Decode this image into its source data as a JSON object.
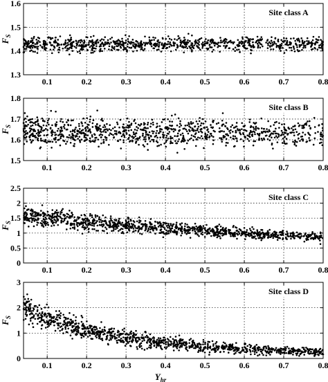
{
  "chart_data": [
    {
      "type": "scatter",
      "panel_title": "Site class A",
      "ylabel_main": "F",
      "ylabel_sub": "S",
      "xlim": [
        0.04,
        0.8
      ],
      "ylim": [
        1.3,
        1.6
      ],
      "yticks": [
        1.3,
        1.4,
        1.5,
        1.6
      ],
      "ytick_labels": [
        "1.3",
        "1.4",
        "1.5",
        "1.6"
      ],
      "xticks": [
        0.1,
        0.2,
        0.3,
        0.4,
        0.5,
        0.6,
        0.7,
        0.8
      ],
      "xtick_labels": [
        "0.1",
        "0.2",
        "0.3",
        "0.4",
        "0.5",
        "0.6",
        "0.7",
        "0.8"
      ],
      "grid": true,
      "trend": [
        [
          0.04,
          1.428
        ],
        [
          0.8,
          1.428
        ]
      ],
      "spread": [
        [
          0.04,
          0.023
        ],
        [
          0.8,
          0.018
        ]
      ],
      "point_count": 900,
      "seed": 11
    },
    {
      "type": "scatter",
      "panel_title": "Site class B",
      "ylabel_main": "F",
      "ylabel_sub": "S",
      "xlim": [
        0.04,
        0.8
      ],
      "ylim": [
        1.5,
        1.8
      ],
      "yticks": [
        1.5,
        1.6,
        1.7,
        1.8
      ],
      "ytick_labels": [
        "1.5",
        "1.6",
        "1.7",
        "1.8"
      ],
      "xticks": [
        0.1,
        0.2,
        0.3,
        0.4,
        0.5,
        0.6,
        0.7,
        0.8
      ],
      "xtick_labels": [
        "0.1",
        "0.2",
        "0.3",
        "0.4",
        "0.5",
        "0.6",
        "0.7",
        "0.8"
      ],
      "grid": true,
      "trend": [
        [
          0.04,
          1.64
        ],
        [
          0.8,
          1.632
        ]
      ],
      "spread": [
        [
          0.04,
          0.05
        ],
        [
          0.8,
          0.04
        ]
      ],
      "point_count": 1000,
      "seed": 23
    },
    {
      "type": "scatter",
      "panel_title": "Site class C",
      "ylabel_main": "F",
      "ylabel_sub": "S",
      "xlim": [
        0.04,
        0.8
      ],
      "ylim": [
        0,
        2.5
      ],
      "yticks": [
        0,
        0.5,
        1,
        1.5,
        2,
        2.5
      ],
      "ytick_labels": [
        "0",
        "0.5",
        "1",
        "1.5",
        "2",
        "2.5"
      ],
      "xticks": [
        0.1,
        0.2,
        0.3,
        0.4,
        0.5,
        0.6,
        0.7,
        0.8
      ],
      "xtick_labels": [
        "0.1",
        "0.2",
        "0.3",
        "0.4",
        "0.5",
        "0.6",
        "0.7",
        "0.8"
      ],
      "grid": true,
      "trend": [
        [
          0.04,
          1.6
        ],
        [
          0.1,
          1.5
        ],
        [
          0.2,
          1.38
        ],
        [
          0.3,
          1.26
        ],
        [
          0.4,
          1.16
        ],
        [
          0.5,
          1.08
        ],
        [
          0.6,
          1.0
        ],
        [
          0.7,
          0.93
        ],
        [
          0.8,
          0.86
        ]
      ],
      "spread": [
        [
          0.04,
          0.22
        ],
        [
          0.2,
          0.18
        ],
        [
          0.5,
          0.13
        ],
        [
          0.8,
          0.1
        ]
      ],
      "point_count": 1100,
      "seed": 37
    },
    {
      "type": "scatter",
      "panel_title": "Site class D",
      "ylabel_main": "F",
      "ylabel_sub": "S",
      "xlim": [
        0.04,
        0.8
      ],
      "ylim": [
        0,
        3
      ],
      "yticks": [
        0,
        1,
        2,
        3
      ],
      "ytick_labels": [
        "0",
        "1",
        "2",
        "3"
      ],
      "xticks": [
        0.1,
        0.2,
        0.3,
        0.4,
        0.5,
        0.6,
        0.7,
        0.8
      ],
      "xtick_labels": [
        "0.1",
        "0.2",
        "0.3",
        "0.4",
        "0.5",
        "0.6",
        "0.7",
        "0.8"
      ],
      "grid": true,
      "trend": [
        [
          0.04,
          2.0
        ],
        [
          0.1,
          1.6
        ],
        [
          0.2,
          1.12
        ],
        [
          0.3,
          0.82
        ],
        [
          0.4,
          0.62
        ],
        [
          0.5,
          0.48
        ],
        [
          0.6,
          0.37
        ],
        [
          0.7,
          0.3
        ],
        [
          0.8,
          0.25
        ]
      ],
      "spread": [
        [
          0.04,
          0.35
        ],
        [
          0.2,
          0.25
        ],
        [
          0.5,
          0.15
        ],
        [
          0.8,
          0.1
        ]
      ],
      "point_count": 1100,
      "seed": 53
    }
  ],
  "x_axis_label": {
    "main": "Y",
    "sub": "hr"
  },
  "colors": {
    "points": "#000000",
    "grid": "#000000",
    "axes": "#000000",
    "background": "#ffffff"
  }
}
